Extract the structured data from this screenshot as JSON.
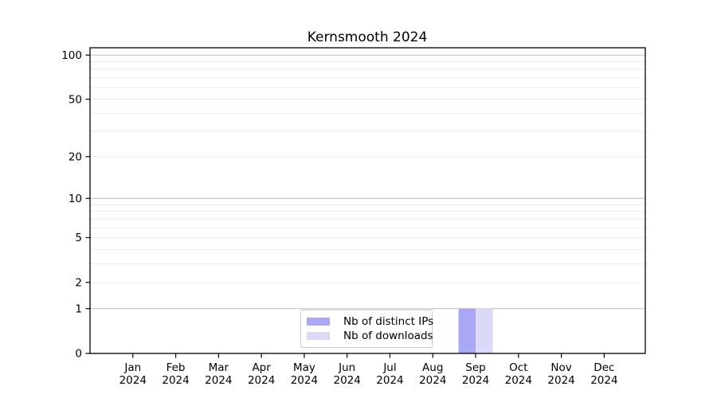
{
  "window": {
    "background": "#ffffff"
  },
  "chart_data": {
    "type": "bar",
    "title": "Kernsmooth 2024",
    "categories": [
      "Jan",
      "Feb",
      "Mar",
      "Apr",
      "May",
      "Jun",
      "Jul",
      "Aug",
      "Sep",
      "Oct",
      "Nov",
      "Dec"
    ],
    "year_label": "2024",
    "series": [
      {
        "name": "Nb of distinct IPs",
        "color": "#a8a8f5",
        "values": [
          0,
          0,
          0,
          0,
          0,
          0,
          0,
          0,
          1,
          0,
          0,
          0
        ]
      },
      {
        "name": "Nb of downloads",
        "color": "#dadaf8",
        "values": [
          0,
          0,
          0,
          0,
          0,
          0,
          0,
          0,
          1,
          0,
          0,
          0
        ]
      }
    ],
    "xlabel": "",
    "ylabel": "",
    "yscale": "log10(1+x)",
    "ylim": [
      0,
      112
    ],
    "y_tick_values": [
      0,
      1,
      2,
      5,
      10,
      20,
      50,
      100
    ],
    "y_major_gridlines": [
      1,
      10,
      100
    ],
    "y_minor_gridlines": [
      2,
      3,
      4,
      5,
      6,
      7,
      8,
      9,
      20,
      30,
      40,
      50,
      60,
      70,
      80,
      90
    ],
    "grid": true,
    "legend_position": "inside-bottom-center"
  },
  "colors": {
    "grid_minor": "#e9e9e9",
    "grid_major": "#bdbdbd",
    "spine": "#000000",
    "tick_text": "#000000",
    "legend_border": "#cccccc"
  }
}
